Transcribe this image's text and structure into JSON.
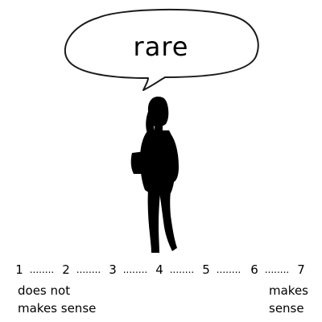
{
  "bubble": {
    "word": "rare"
  },
  "figure": {
    "icon": "woman-silhouette-icon",
    "color": "#000000"
  },
  "scale": {
    "points": [
      "1",
      "2",
      "3",
      "4",
      "5",
      "6",
      "7"
    ],
    "separator": "........"
  },
  "anchors": {
    "left_line1": "does not",
    "left_line2": "makes sense",
    "right_line1": "makes",
    "right_line2": "sense"
  }
}
